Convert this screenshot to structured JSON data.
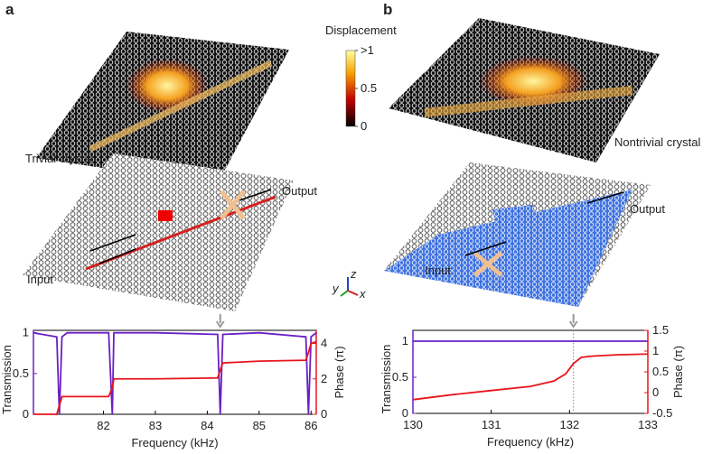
{
  "figure": {
    "panel_a": {
      "label": "a",
      "caption": "Trivial crystal",
      "input": "Input",
      "output": "Output"
    },
    "panel_b": {
      "label": "b",
      "caption": "Nontrivial crystal",
      "input": "Input",
      "output": "Output"
    },
    "colorbar": {
      "title": "Displacement",
      "ticks": [
        {
          "value": 1,
          "label": ">1"
        },
        0.5,
        0
      ]
    },
    "axes": {
      "x": "x",
      "y": "y",
      "z": "z"
    }
  },
  "chart_data": [
    {
      "type": "line",
      "xlabel": "Frequency (kHz)",
      "ylabel": "Transmission",
      "y2label": "Phase (π)",
      "x": [
        80.65,
        81.1,
        81.15,
        81.2,
        81.3,
        82.1,
        82.17,
        82.2,
        83,
        84.2,
        84.25,
        84.3,
        85,
        85.9,
        85.95,
        86.0,
        86.1
      ],
      "xlim": [
        80.65,
        86.1
      ],
      "xticks": [
        82,
        83,
        84,
        85,
        86
      ],
      "ylim": [
        0,
        1.03
      ],
      "yticks": [
        0,
        0.5,
        1
      ],
      "y2lim": [
        0,
        4.74
      ],
      "y2ticks": [
        0,
        2,
        4
      ],
      "marker_x": 84.25,
      "marker_line": false,
      "series": [
        {
          "color": "#6a1fc4",
          "values": [
            1,
            0.95,
            0,
            0.95,
            1,
            1,
            0,
            1,
            1,
            0.98,
            0,
            0.98,
            1,
            0.95,
            0,
            0.95,
            1
          ]
        },
        {
          "color": "#e8141c",
          "axis": "y2",
          "values": [
            0,
            0,
            0.5,
            1,
            1,
            1,
            1.5,
            2,
            2,
            2.05,
            2.5,
            2.9,
            3,
            3.05,
            3.5,
            4,
            4.1
          ]
        }
      ]
    },
    {
      "type": "line",
      "xlabel": "Frequency (kHz)",
      "ylabel": "Transmission",
      "y2label": "Phase (π)",
      "x": [
        130,
        130.5,
        131,
        131.5,
        131.8,
        131.95,
        132.05,
        132.15,
        132.3,
        132.6,
        133
      ],
      "xlim": [
        130,
        133
      ],
      "xticks": [
        130,
        131,
        132,
        133
      ],
      "ylim": [
        0,
        1.15
      ],
      "yticks": [
        0,
        0.5,
        1
      ],
      "y2lim": [
        -0.5,
        1.5
      ],
      "y2ticks": [
        -0.5,
        0,
        0.5,
        1,
        1.5
      ],
      "marker_x": 132.05,
      "marker_line": true,
      "series": [
        {
          "color": "#6a1fc4",
          "values": [
            1,
            1,
            1,
            1,
            1,
            1,
            1,
            1,
            1,
            1,
            1
          ]
        },
        {
          "color": "#e8141c",
          "axis": "y2",
          "values": [
            -0.17,
            -0.05,
            0.05,
            0.15,
            0.28,
            0.45,
            0.7,
            0.85,
            0.88,
            0.91,
            0.93
          ]
        }
      ]
    }
  ]
}
